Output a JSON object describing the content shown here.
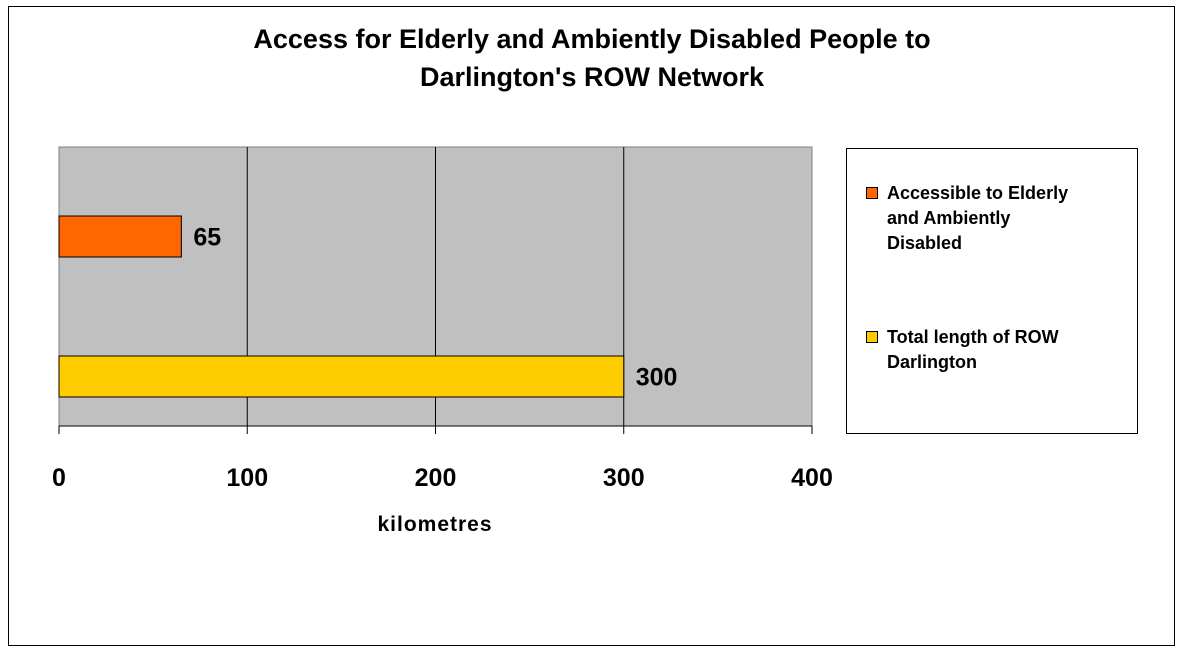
{
  "chart_data": {
    "type": "bar",
    "orientation": "horizontal",
    "title": "Access for Elderly and Ambiently Disabled People to Darlington's ROW Network",
    "title_lines": [
      "Access for Elderly and Ambiently Disabled People to",
      "Darlington's ROW Network"
    ],
    "xlabel": "kilometres",
    "ylabel": "",
    "xlim": [
      0,
      400
    ],
    "xticks": [
      "0",
      "100",
      "200",
      "300",
      "400"
    ],
    "xtick_values": [
      0,
      100,
      200,
      300,
      400
    ],
    "grid": true,
    "legend_position": "right",
    "plot_background": "#c0c0c0",
    "series": [
      {
        "name": "Accessible to Elderly and Ambiently Disabled",
        "value": 65,
        "label": "65",
        "color": "#ff6600"
      },
      {
        "name": "Total length of ROW Darlington",
        "value": 300,
        "label": "300",
        "color": "#ffcc00"
      }
    ],
    "legend": [
      {
        "lines": [
          "Accessible to Elderly",
          "and Ambiently",
          "Disabled"
        ],
        "color": "#ff6600"
      },
      {
        "lines": [
          "Total length of ROW",
          "Darlington"
        ],
        "color": "#ffcc00"
      }
    ]
  }
}
